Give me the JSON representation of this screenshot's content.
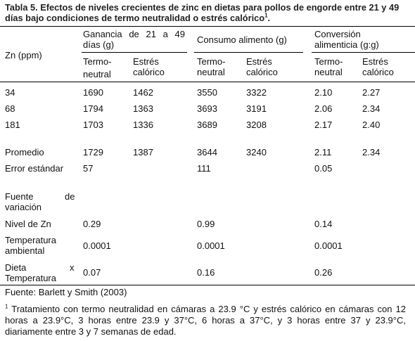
{
  "caption": {
    "line1": "Tabla 5.  Efectos de niveles crecientes de zinc en dietas para pollos de engorde entre 21 y 49",
    "line2": "días bajo condiciones de termo neutralidad o estrés calórico",
    "note_mark": "1",
    "end": "."
  },
  "header": {
    "zn": "Zn (ppm)",
    "group1_l1": "Ganancia de 21 a 49",
    "group1_l2": "días (g)",
    "group2": "Consumo alimento (g)",
    "group3_l1": "Conversión",
    "group3_l2": "alimenticia (g:g)",
    "termo_l1": "Termo-",
    "termo_l2": "neutral",
    "estres_l1": "Estrés",
    "estres_l2": "calórico"
  },
  "rows": [
    {
      "zn": "34",
      "g_tn": "1690",
      "g_ec": "1462",
      "c_tn": "3550",
      "c_ec": "3322",
      "v_tn": "2.10",
      "v_ec": "2.27"
    },
    {
      "zn": "68",
      "g_tn": "1794",
      "g_ec": "1363",
      "c_tn": "3693",
      "c_ec": "3191",
      "v_tn": "2.06",
      "v_ec": "2.34"
    },
    {
      "zn": "181",
      "g_tn": "1703",
      "g_ec": "1336",
      "c_tn": "3689",
      "c_ec": "3208",
      "v_tn": "2.17",
      "v_ec": "2.40"
    }
  ],
  "promedio": {
    "label": "Promedio",
    "g_tn": "1729",
    "g_ec": "1387",
    "c_tn": "3644",
    "c_ec": "3240",
    "v_tn": "2.11",
    "v_ec": "2.34"
  },
  "error": {
    "label": "Error estándar",
    "g": "57",
    "c": "111",
    "v": "0.05"
  },
  "fuente": {
    "w1": "Fuente",
    "w2": "de",
    "l2": "variación"
  },
  "sources": {
    "zn": {
      "label": "Nivel de Zn",
      "g": "0.29",
      "c": "0.99",
      "v": "0.14"
    },
    "temp": {
      "l1": "Temperatura",
      "l2": "ambiental",
      "g": "0.0001",
      "c": "0.0001",
      "v": "0.0001"
    },
    "diet": {
      "l1a": "Dieta",
      "l1b": "x",
      "l2": "Temperatura",
      "g": "0.07",
      "c": "0.16",
      "v": "0.26"
    }
  },
  "footer": {
    "source": "Fuente: Barlett y Smith (2003)",
    "note_mark": "1",
    "note_l1": " Tratamiento con termo neutralidad en cámaras a 23.9 °C y estrés calórico en cámaras con 12",
    "note_l2": "horas a  23.9°C, 3 horas entre 23.9 y 37°C, 6 horas a 37°C, y 3 horas entre 37 y 23.9°C,",
    "note_l3": "diariamente entre 3 y 7 semanas de edad."
  }
}
